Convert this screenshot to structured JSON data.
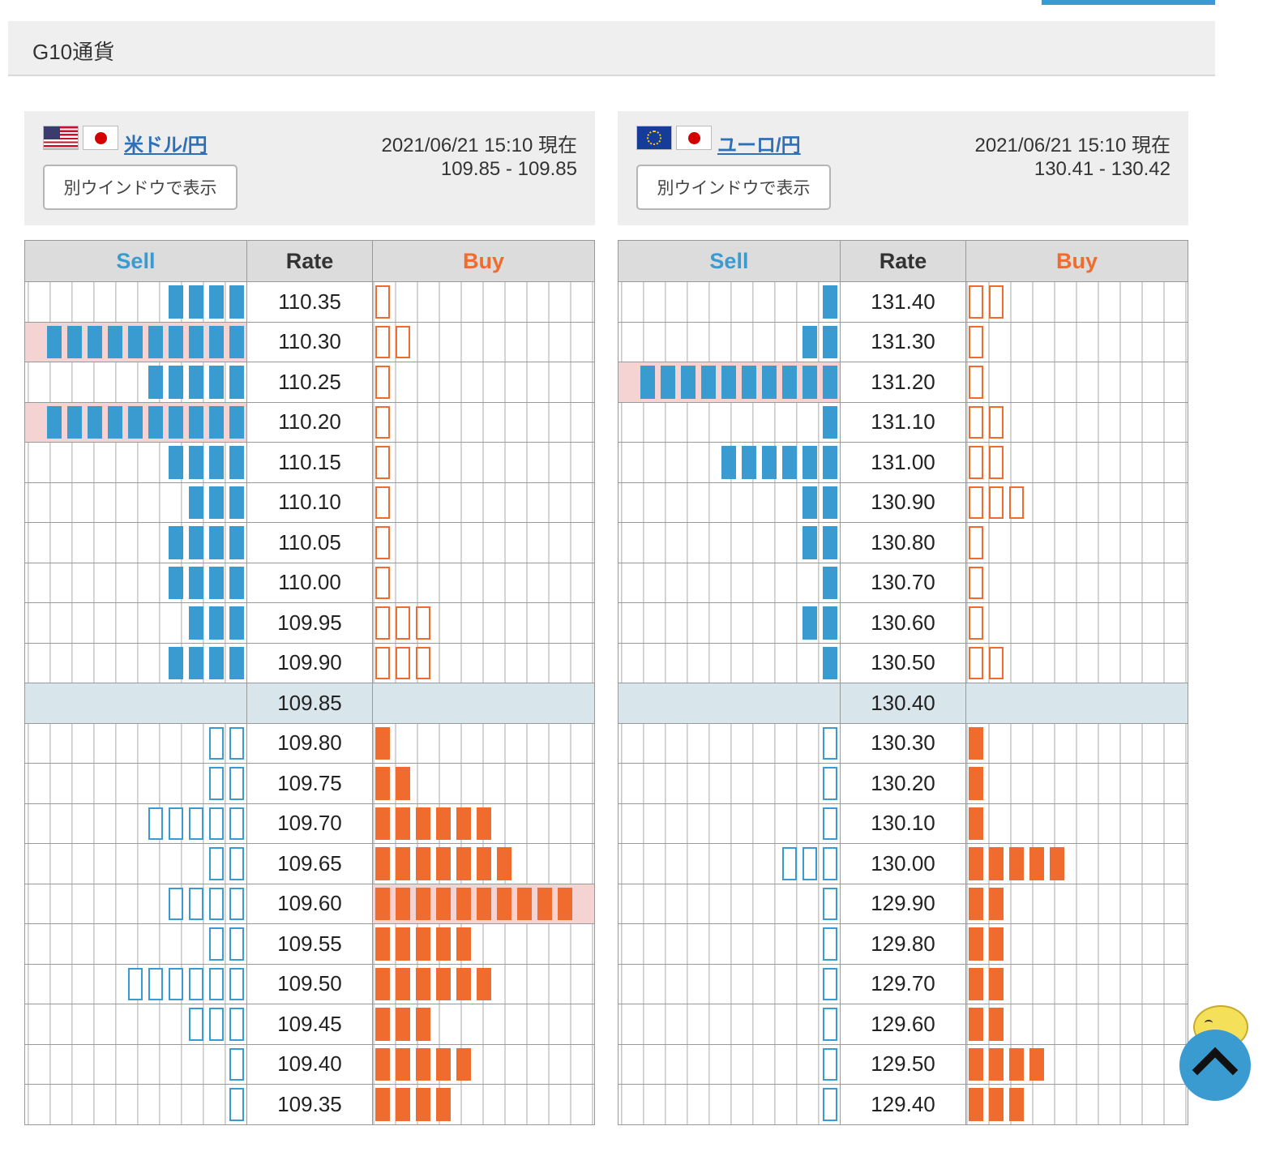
{
  "section": {
    "title": "G10通貨"
  },
  "panels": [
    {
      "pair": "米ドル/円",
      "flags": [
        "us-flag-icon",
        "jp-flag-icon"
      ],
      "timestamp": "2021/06/21 15:10 現在",
      "bid_ask": "109.85 - 109.85",
      "window_button": "別ウインドウで表示",
      "headers": {
        "sell": "Sell",
        "rate": "Rate",
        "buy": "Buy"
      },
      "rows": [
        {
          "rate": "110.35",
          "sell": 4,
          "buy": 1
        },
        {
          "rate": "110.30",
          "sell": 10,
          "buy": 2,
          "sell_highlight": true
        },
        {
          "rate": "110.25",
          "sell": 5,
          "buy": 1
        },
        {
          "rate": "110.20",
          "sell": 10,
          "buy": 1,
          "sell_highlight": true
        },
        {
          "rate": "110.15",
          "sell": 4,
          "buy": 1
        },
        {
          "rate": "110.10",
          "sell": 3,
          "buy": 1
        },
        {
          "rate": "110.05",
          "sell": 4,
          "buy": 1
        },
        {
          "rate": "110.00",
          "sell": 4,
          "buy": 1
        },
        {
          "rate": "109.95",
          "sell": 3,
          "buy": 3
        },
        {
          "rate": "109.90",
          "sell": 4,
          "buy": 3
        },
        {
          "rate": "109.85",
          "sell": 0,
          "buy": 0,
          "current": true
        },
        {
          "rate": "109.80",
          "sell": 2,
          "buy": 1
        },
        {
          "rate": "109.75",
          "sell": 2,
          "buy": 2
        },
        {
          "rate": "109.70",
          "sell": 5,
          "buy": 6
        },
        {
          "rate": "109.65",
          "sell": 2,
          "buy": 7
        },
        {
          "rate": "109.60",
          "sell": 4,
          "buy": 10,
          "buy_highlight": true
        },
        {
          "rate": "109.55",
          "sell": 2,
          "buy": 5
        },
        {
          "rate": "109.50",
          "sell": 6,
          "buy": 6
        },
        {
          "rate": "109.45",
          "sell": 3,
          "buy": 3
        },
        {
          "rate": "109.40",
          "sell": 1,
          "buy": 5
        },
        {
          "rate": "109.35",
          "sell": 1,
          "buy": 4
        }
      ]
    },
    {
      "pair": "ユーロ/円",
      "flags": [
        "eu-flag-icon",
        "jp-flag-icon"
      ],
      "timestamp": "2021/06/21 15:10 現在",
      "bid_ask": "130.41 - 130.42",
      "window_button": "別ウインドウで表示",
      "headers": {
        "sell": "Sell",
        "rate": "Rate",
        "buy": "Buy"
      },
      "rows": [
        {
          "rate": "131.40",
          "sell": 1,
          "buy": 2
        },
        {
          "rate": "131.30",
          "sell": 2,
          "buy": 1
        },
        {
          "rate": "131.20",
          "sell": 10,
          "buy": 1,
          "sell_highlight": true
        },
        {
          "rate": "131.10",
          "sell": 1,
          "buy": 2
        },
        {
          "rate": "131.00",
          "sell": 6,
          "buy": 2
        },
        {
          "rate": "130.90",
          "sell": 2,
          "buy": 3
        },
        {
          "rate": "130.80",
          "sell": 2,
          "buy": 1
        },
        {
          "rate": "130.70",
          "sell": 1,
          "buy": 1
        },
        {
          "rate": "130.60",
          "sell": 2,
          "buy": 1
        },
        {
          "rate": "130.50",
          "sell": 1,
          "buy": 2
        },
        {
          "rate": "130.40",
          "sell": 0,
          "buy": 0,
          "current": true
        },
        {
          "rate": "130.30",
          "sell": 1,
          "buy": 1
        },
        {
          "rate": "130.20",
          "sell": 1,
          "buy": 1
        },
        {
          "rate": "130.10",
          "sell": 1,
          "buy": 1
        },
        {
          "rate": "130.00",
          "sell": 3,
          "buy": 5
        },
        {
          "rate": "129.90",
          "sell": 1,
          "buy": 2
        },
        {
          "rate": "129.80",
          "sell": 1,
          "buy": 2
        },
        {
          "rate": "129.70",
          "sell": 1,
          "buy": 2
        },
        {
          "rate": "129.60",
          "sell": 1,
          "buy": 2
        },
        {
          "rate": "129.50",
          "sell": 1,
          "buy": 4
        },
        {
          "rate": "129.40",
          "sell": 1,
          "buy": 3
        }
      ]
    }
  ],
  "colors": {
    "sell": "#3a9bd0",
    "buy": "#ef6c2e",
    "highlight": "#f6d3d3",
    "current_row": "#d8e6ec"
  },
  "icons": {
    "back_to_top": "chevron-up-icon",
    "mascot": "mascot-icon"
  }
}
